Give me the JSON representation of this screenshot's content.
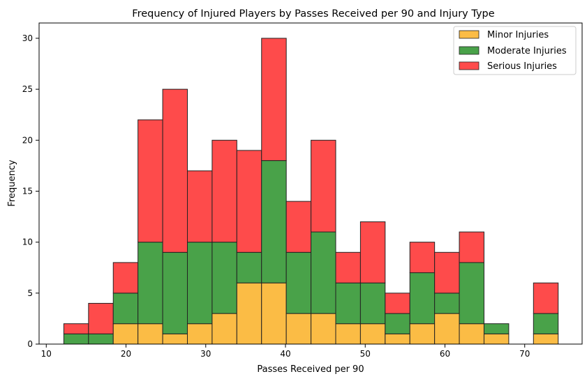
{
  "chart_data": {
    "type": "bar",
    "stacked": true,
    "title": "Frequency of Injured Players by Passes Received per 90 and Injury Type",
    "xlabel": "Passes Received per 90",
    "ylabel": "Frequency",
    "xlim": [
      9.1,
      77.2
    ],
    "ylim": [
      0,
      31.5
    ],
    "xticks": [
      10,
      20,
      30,
      40,
      50,
      60,
      70
    ],
    "yticks": [
      0,
      5,
      10,
      15,
      20,
      25,
      30
    ],
    "grid": false,
    "legend_position": "top-right",
    "bins": [
      [
        12.2,
        15.3
      ],
      [
        15.3,
        18.4
      ],
      [
        18.4,
        21.5
      ],
      [
        21.5,
        24.6
      ],
      [
        24.6,
        27.7
      ],
      [
        27.7,
        30.8
      ],
      [
        30.8,
        33.9
      ],
      [
        33.9,
        37.0
      ],
      [
        37.0,
        40.1
      ],
      [
        40.1,
        43.2
      ],
      [
        43.2,
        46.3
      ],
      [
        46.3,
        49.4
      ],
      [
        49.4,
        52.5
      ],
      [
        52.5,
        55.6
      ],
      [
        55.6,
        58.7
      ],
      [
        58.7,
        61.8
      ],
      [
        61.8,
        64.9
      ],
      [
        64.9,
        68.0
      ],
      [
        68.0,
        71.1
      ],
      [
        71.1,
        74.2
      ]
    ],
    "series": [
      {
        "name": "Minor Injuries",
        "color": "#fbbc45",
        "values": [
          0,
          0,
          2,
          2,
          1,
          2,
          3,
          6,
          6,
          3,
          3,
          2,
          2,
          1,
          2,
          3,
          2,
          1,
          0,
          1
        ]
      },
      {
        "name": "Moderate Injuries",
        "color": "#49a249",
        "values": [
          1,
          1,
          3,
          8,
          8,
          8,
          7,
          3,
          12,
          6,
          8,
          4,
          4,
          2,
          5,
          2,
          6,
          1,
          0,
          2
        ]
      },
      {
        "name": "Serious Injuries",
        "color": "#fe4b4b",
        "values": [
          1,
          3,
          3,
          12,
          16,
          7,
          10,
          10,
          12,
          5,
          9,
          3,
          6,
          2,
          3,
          4,
          3,
          0,
          0,
          3
        ]
      }
    ]
  }
}
